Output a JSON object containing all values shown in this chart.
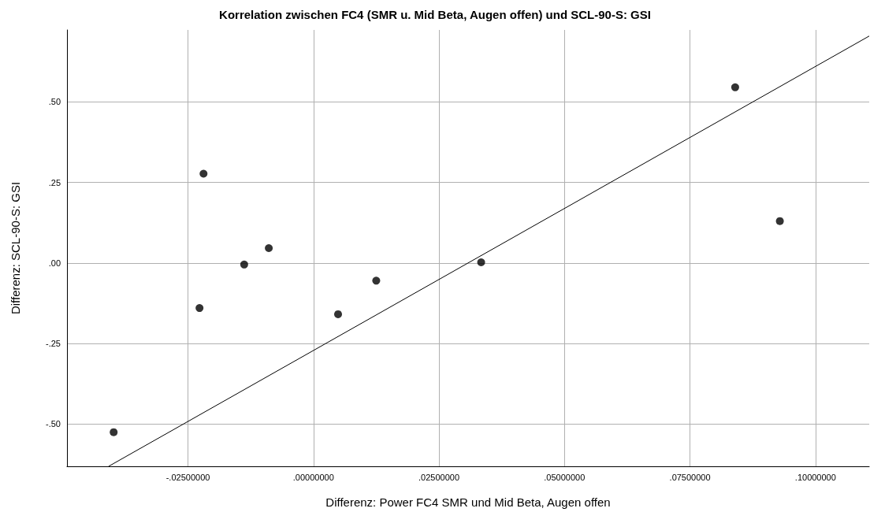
{
  "chart_data": {
    "type": "scatter",
    "title": "Korrelation zwischen FC4 (SMR u. Mid Beta, Augen offen) und SCL-90-S: GSI",
    "xlabel": "Differenz: Power FC4 SMR und Mid Beta, Augen offen",
    "ylabel": "Differenz: SCL-90-S: GSI",
    "series": [
      {
        "color": "#000000",
        "x": [
          -0.0398,
          -0.0219,
          -0.0227,
          -0.0138,
          -0.0089,
          0.0049,
          0.0125,
          0.0334,
          0.084,
          0.0929
        ],
        "values": [
          -0.525,
          0.277,
          -0.14,
          -0.005,
          0.046,
          -0.159,
          -0.055,
          0.002,
          0.545,
          0.13
        ]
      },
      {
        "type": "line",
        "color": "#000000",
        "marker": "none",
        "x": [
          -0.0408,
          0.1107
        ],
        "values": [
          -0.631,
          0.704
        ]
      }
    ],
    "marker": "circle",
    "grid": true,
    "xlim": [
      -0.0491,
      0.1107
    ],
    "xticks": [
      {
        "value": -0.025,
        "label": "-.02500000"
      },
      {
        "value": 0,
        "label": ".00000000"
      },
      {
        "value": 0.025,
        "label": ".02500000"
      },
      {
        "value": 0.05,
        "label": ".05000000"
      },
      {
        "value": 0.075,
        "label": ".07500000"
      },
      {
        "value": 0.1,
        "label": ".10000000"
      }
    ],
    "ylim": [
      -0.631,
      0.723
    ],
    "yticks": [
      {
        "value": -0.5,
        "label": "-.50"
      },
      {
        "value": -0.25,
        "label": "-.25"
      },
      {
        "value": 0,
        "label": ".00"
      },
      {
        "value": 0.25,
        "label": ".25"
      },
      {
        "value": 0.5,
        "label": ".50"
      }
    ]
  }
}
